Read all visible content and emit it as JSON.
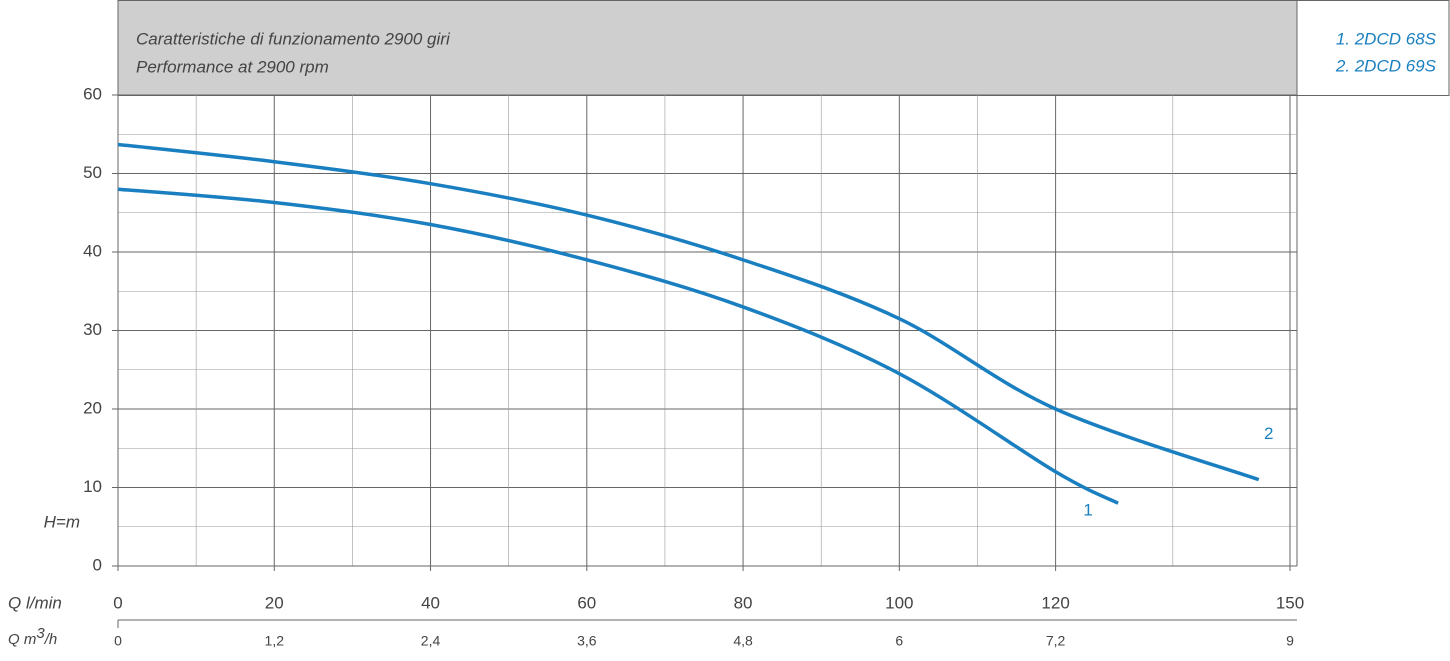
{
  "chart_data": {
    "type": "line",
    "title": "Caratteristiche di funzionamento 2900 giri",
    "subtitle": "Performance at 2900 rpm",
    "ylabel": "H=m",
    "xlabel": "Q l/min",
    "x2label": {
      "main": "Q m",
      "sup": "3",
      "end": "/h"
    },
    "xlim": [
      0,
      150
    ],
    "xticks": [
      0,
      20,
      40,
      60,
      80,
      100,
      120,
      150
    ],
    "x2lim": [
      0,
      9
    ],
    "x2ticks": [
      0,
      {
        "value": 1.2,
        "label": "1,2"
      },
      {
        "value": 2.4,
        "label": "2,4"
      },
      {
        "value": 3.6,
        "label": "3,6"
      },
      {
        "value": 4.8,
        "label": "4,8"
      },
      6,
      {
        "value": 7.2,
        "label": "7,2"
      },
      9
    ],
    "ylim": [
      0,
      60
    ],
    "yticks": [
      0,
      10,
      20,
      30,
      40,
      50,
      60
    ],
    "grid": true,
    "series": [
      {
        "name": "1. 2DCD 68S",
        "curve_label": "1",
        "color": "#1a7fc0",
        "x": [
          0,
          20,
          40,
          60,
          80,
          100,
          120,
          128
        ],
        "values": [
          48,
          46.3,
          43.5,
          39,
          33,
          24.5,
          12,
          8
        ]
      },
      {
        "name": "2. 2DCD 69S",
        "curve_label": "2",
        "color": "#1a7fc0",
        "x": [
          0,
          20,
          40,
          60,
          80,
          100,
          120,
          146
        ],
        "values": [
          53.7,
          51.5,
          48.7,
          44.7,
          39,
          31.5,
          20,
          11
        ]
      }
    ]
  }
}
